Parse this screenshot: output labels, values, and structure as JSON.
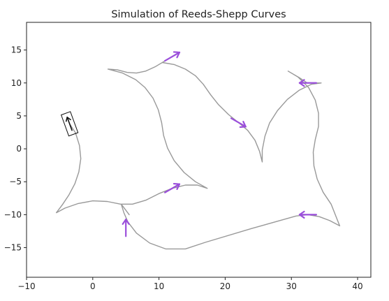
{
  "chart_data": {
    "type": "line",
    "title": "Simulation of Reeds-Shepp Curves",
    "xlabel": "",
    "ylabel": "",
    "xlim": [
      -10,
      42
    ],
    "ylim": [
      -19.5,
      19.2
    ],
    "x_ticks": [
      -10,
      0,
      10,
      20,
      30,
      40
    ],
    "y_ticks": [
      -15,
      -10,
      -5,
      0,
      5,
      10,
      15
    ],
    "grid": false,
    "colors": {
      "path": "#999999",
      "arrow": "#9b4fdb",
      "vehicle": "#111111",
      "axes": "#222222"
    },
    "waypoints": [
      {
        "x": 12.0,
        "y": 14.0,
        "heading_deg": 30
      },
      {
        "x": 22.0,
        "y": 4.0,
        "heading_deg": -30
      },
      {
        "x": 32.5,
        "y": 10.0,
        "heading_deg": 180
      },
      {
        "x": 32.5,
        "y": -10.0,
        "heading_deg": 180
      },
      {
        "x": 5.0,
        "y": -12.0,
        "heading_deg": 90
      },
      {
        "x": 12.0,
        "y": -6.0,
        "heading_deg": 30
      }
    ],
    "vehicle": {
      "x": -3.5,
      "y": 3.8,
      "heading_deg": 110
    },
    "path": [
      [
        [
          -3.5,
          3.8
        ],
        [
          -2.6,
          2.4
        ],
        [
          -2.0,
          0.5
        ],
        [
          -1.8,
          -1.5
        ],
        [
          -2.1,
          -3.5
        ],
        [
          -2.7,
          -5.3
        ],
        [
          -3.6,
          -7.0
        ],
        [
          -4.6,
          -8.5
        ],
        [
          -5.5,
          -9.7
        ],
        [
          -4.2,
          -9.0
        ],
        [
          -2.2,
          -8.3
        ],
        [
          0.0,
          -7.9
        ],
        [
          2.2,
          -8.0
        ],
        [
          4.2,
          -8.4
        ],
        [
          6.0,
          -8.4
        ],
        [
          8.0,
          -7.8
        ],
        [
          10.0,
          -6.8
        ],
        [
          12.0,
          -6.0
        ],
        [
          14.0,
          -5.5
        ],
        [
          15.8,
          -5.5
        ],
        [
          17.3,
          -6.0
        ],
        [
          15.5,
          -5.0
        ],
        [
          13.8,
          -3.6
        ],
        [
          12.3,
          -1.8
        ],
        [
          11.3,
          0.1
        ],
        [
          10.7,
          2.0
        ],
        [
          10.4,
          4.0
        ],
        [
          9.9,
          5.9
        ],
        [
          9.1,
          7.7
        ],
        [
          7.9,
          9.3
        ],
        [
          6.5,
          10.5
        ],
        [
          4.5,
          11.5
        ],
        [
          2.3,
          12.1
        ],
        [
          3.7,
          12.0
        ],
        [
          5.2,
          11.6
        ],
        [
          6.6,
          11.5
        ],
        [
          8.0,
          11.8
        ],
        [
          9.5,
          12.5
        ],
        [
          12.0,
          14.0
        ],
        [
          10.5,
          13.1
        ],
        [
          12.3,
          12.8
        ],
        [
          14.0,
          12.1
        ],
        [
          15.5,
          11.1
        ],
        [
          16.7,
          9.8
        ],
        [
          17.8,
          8.2
        ],
        [
          19.0,
          6.7
        ],
        [
          20.5,
          5.2
        ],
        [
          22.0,
          4.0
        ],
        [
          23.4,
          2.8
        ],
        [
          24.5,
          1.3
        ],
        [
          25.2,
          -0.4
        ],
        [
          25.6,
          -2.0
        ],
        [
          25.6,
          -0.2
        ],
        [
          26.0,
          1.9
        ],
        [
          26.7,
          3.9
        ],
        [
          27.9,
          5.8
        ],
        [
          29.4,
          7.5
        ],
        [
          31.2,
          8.9
        ],
        [
          33.0,
          9.8
        ],
        [
          34.5,
          10.0
        ],
        [
          32.4,
          10.0
        ],
        [
          31.2,
          10.8
        ],
        [
          29.5,
          11.8
        ],
        [
          31.0,
          10.9
        ],
        [
          32.6,
          9.3
        ],
        [
          33.6,
          7.4
        ],
        [
          34.1,
          5.4
        ],
        [
          34.1,
          3.4
        ],
        [
          33.6,
          1.4
        ],
        [
          33.3,
          -0.5
        ],
        [
          33.4,
          -2.6
        ],
        [
          33.9,
          -4.6
        ],
        [
          34.8,
          -6.6
        ],
        [
          36.0,
          -8.4
        ],
        [
          37.3,
          -11.7
        ],
        [
          35.8,
          -10.9
        ],
        [
          34.2,
          -10.3
        ],
        [
          32.5,
          -10.0
        ],
        [
          30.7,
          -10.2
        ],
        [
          24.0,
          -12.1
        ],
        [
          17.0,
          -14.2
        ],
        [
          14.0,
          -15.2
        ],
        [
          11.0,
          -15.2
        ],
        [
          8.6,
          -14.3
        ],
        [
          6.6,
          -12.8
        ],
        [
          5.3,
          -11.1
        ],
        [
          4.7,
          -9.7
        ],
        [
          4.3,
          -8.4
        ],
        [
          5.5,
          -10.0
        ]
      ]
    ]
  }
}
